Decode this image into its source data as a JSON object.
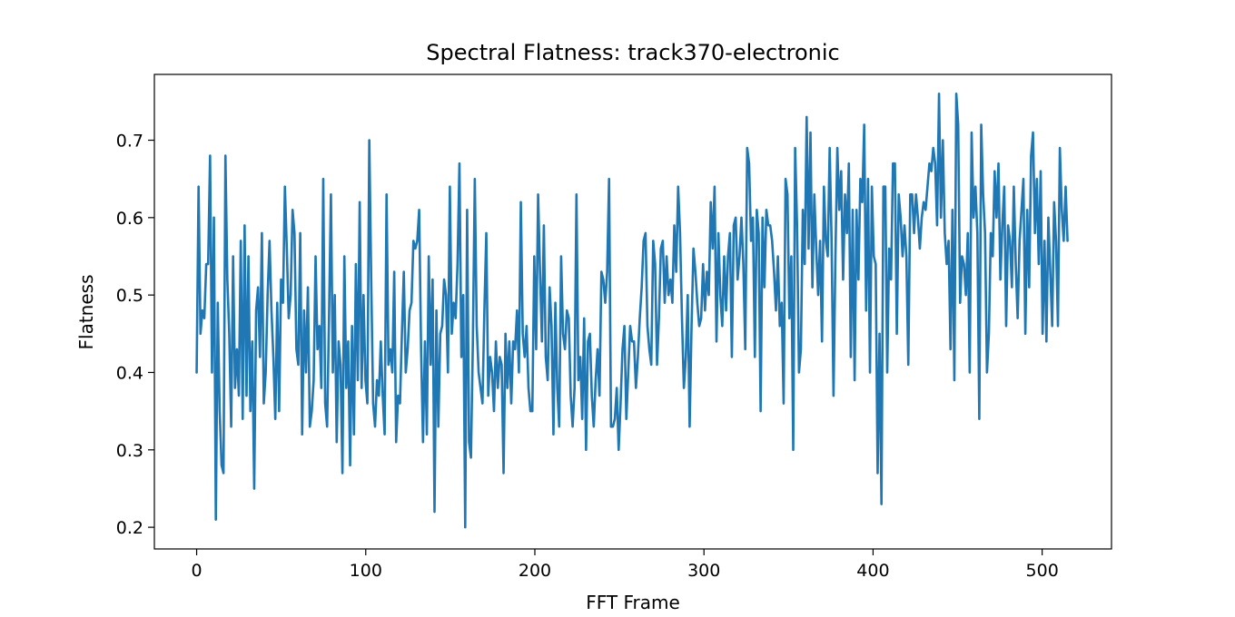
{
  "chart_data": {
    "type": "line",
    "title": "Spectral Flatness: track370-electronic",
    "xlabel": "FFT Frame",
    "ylabel": "Flatness",
    "xlim": [
      -25,
      541
    ],
    "ylim": [
      0.172,
      0.785
    ],
    "xticks": [
      0,
      100,
      200,
      300,
      400,
      500
    ],
    "yticks": [
      0.2,
      0.3,
      0.4,
      0.5,
      0.6,
      0.7
    ],
    "xtick_labels": [
      "0",
      "100",
      "200",
      "300",
      "400",
      "500"
    ],
    "ytick_labels": [
      "0.2",
      "0.3",
      "0.4",
      "0.5",
      "0.6",
      "0.7"
    ],
    "grid": false,
    "legend": "none",
    "line_color": "#1f77b4",
    "series": [
      {
        "values": [
          0.4,
          0.64,
          0.45,
          0.48,
          0.47,
          0.54,
          0.54,
          0.68,
          0.4,
          0.6,
          0.21,
          0.49,
          0.35,
          0.28,
          0.27,
          0.68,
          0.52,
          0.45,
          0.33,
          0.55,
          0.38,
          0.43,
          0.37,
          0.57,
          0.34,
          0.59,
          0.37,
          0.55,
          0.35,
          0.44,
          0.25,
          0.48,
          0.51,
          0.42,
          0.58,
          0.36,
          0.4,
          0.5,
          0.57,
          0.48,
          0.42,
          0.34,
          0.49,
          0.35,
          0.52,
          0.49,
          0.64,
          0.56,
          0.47,
          0.5,
          0.61,
          0.58,
          0.43,
          0.41,
          0.58,
          0.32,
          0.48,
          0.4,
          0.51,
          0.33,
          0.35,
          0.39,
          0.55,
          0.43,
          0.46,
          0.38,
          0.65,
          0.36,
          0.33,
          0.47,
          0.63,
          0.4,
          0.5,
          0.31,
          0.44,
          0.41,
          0.27,
          0.55,
          0.38,
          0.44,
          0.28,
          0.46,
          0.32,
          0.54,
          0.39,
          0.62,
          0.38,
          0.5,
          0.39,
          0.36,
          0.7,
          0.52,
          0.36,
          0.33,
          0.39,
          0.37,
          0.44,
          0.37,
          0.32,
          0.63,
          0.41,
          0.43,
          0.4,
          0.53,
          0.31,
          0.37,
          0.36,
          0.45,
          0.53,
          0.4,
          0.43,
          0.48,
          0.49,
          0.57,
          0.56,
          0.57,
          0.61,
          0.43,
          0.31,
          0.44,
          0.32,
          0.55,
          0.41,
          0.52,
          0.22,
          0.48,
          0.33,
          0.45,
          0.46,
          0.52,
          0.5,
          0.4,
          0.64,
          0.45,
          0.49,
          0.47,
          0.54,
          0.67,
          0.42,
          0.5,
          0.2,
          0.61,
          0.31,
          0.29,
          0.44,
          0.65,
          0.46,
          0.4,
          0.38,
          0.36,
          0.48,
          0.58,
          0.37,
          0.42,
          0.4,
          0.35,
          0.44,
          0.38,
          0.42,
          0.41,
          0.27,
          0.45,
          0.38,
          0.44,
          0.36,
          0.44,
          0.43,
          0.48,
          0.4,
          0.62,
          0.45,
          0.42,
          0.46,
          0.38,
          0.35,
          0.35,
          0.55,
          0.43,
          0.63,
          0.53,
          0.44,
          0.59,
          0.42,
          0.39,
          0.51,
          0.46,
          0.32,
          0.49,
          0.38,
          0.33,
          0.55,
          0.45,
          0.43,
          0.48,
          0.47,
          0.37,
          0.33,
          0.38,
          0.63,
          0.39,
          0.42,
          0.34,
          0.47,
          0.3,
          0.44,
          0.45,
          0.37,
          0.33,
          0.39,
          0.43,
          0.37,
          0.53,
          0.52,
          0.49,
          0.53,
          0.65,
          0.33,
          0.33,
          0.34,
          0.38,
          0.3,
          0.36,
          0.43,
          0.46,
          0.34,
          0.4,
          0.46,
          0.44,
          0.44,
          0.38,
          0.42,
          0.47,
          0.51,
          0.57,
          0.58,
          0.46,
          0.43,
          0.41,
          0.57,
          0.54,
          0.41,
          0.47,
          0.56,
          0.57,
          0.49,
          0.55,
          0.5,
          0.52,
          0.49,
          0.59,
          0.53,
          0.64,
          0.58,
          0.47,
          0.38,
          0.42,
          0.5,
          0.33,
          0.46,
          0.56,
          0.53,
          0.49,
          0.46,
          0.47,
          0.54,
          0.48,
          0.53,
          0.5,
          0.62,
          0.56,
          0.64,
          0.44,
          0.58,
          0.5,
          0.46,
          0.55,
          0.48,
          0.55,
          0.58,
          0.42,
          0.59,
          0.6,
          0.52,
          0.55,
          0.6,
          0.54,
          0.43,
          0.69,
          0.67,
          0.57,
          0.6,
          0.42,
          0.61,
          0.58,
          0.35,
          0.6,
          0.51,
          0.61,
          0.59,
          0.59,
          0.57,
          0.53,
          0.48,
          0.55,
          0.46,
          0.49,
          0.36,
          0.65,
          0.63,
          0.47,
          0.55,
          0.3,
          0.69,
          0.59,
          0.4,
          0.43,
          0.61,
          0.54,
          0.73,
          0.56,
          0.71,
          0.51,
          0.63,
          0.56,
          0.5,
          0.57,
          0.44,
          0.64,
          0.57,
          0.55,
          0.69,
          0.57,
          0.37,
          0.55,
          0.69,
          0.61,
          0.66,
          0.52,
          0.63,
          0.58,
          0.67,
          0.42,
          0.61,
          0.39,
          0.61,
          0.52,
          0.65,
          0.62,
          0.72,
          0.48,
          0.65,
          0.4,
          0.64,
          0.55,
          0.54,
          0.27,
          0.45,
          0.23,
          0.64,
          0.64,
          0.4,
          0.56,
          0.52,
          0.67,
          0.67,
          0.45,
          0.63,
          0.6,
          0.55,
          0.59,
          0.55,
          0.41,
          0.63,
          0.63,
          0.58,
          0.63,
          0.6,
          0.56,
          0.6,
          0.62,
          0.61,
          0.64,
          0.67,
          0.66,
          0.69,
          0.67,
          0.59,
          0.76,
          0.6,
          0.7,
          0.58,
          0.54,
          0.57,
          0.43,
          0.61,
          0.39,
          0.76,
          0.72,
          0.49,
          0.55,
          0.54,
          0.5,
          0.58,
          0.4,
          0.71,
          0.6,
          0.64,
          0.58,
          0.34,
          0.72,
          0.63,
          0.58,
          0.4,
          0.45,
          0.58,
          0.55,
          0.66,
          0.6,
          0.67,
          0.52,
          0.59,
          0.64,
          0.46,
          0.59,
          0.57,
          0.51,
          0.64,
          0.54,
          0.47,
          0.57,
          0.61,
          0.65,
          0.45,
          0.61,
          0.51,
          0.68,
          0.71,
          0.58,
          0.65,
          0.54,
          0.66,
          0.45,
          0.57,
          0.44,
          0.6,
          0.53,
          0.46,
          0.62,
          0.57,
          0.46,
          0.69,
          0.61,
          0.57,
          0.64,
          0.57
        ]
      }
    ]
  }
}
